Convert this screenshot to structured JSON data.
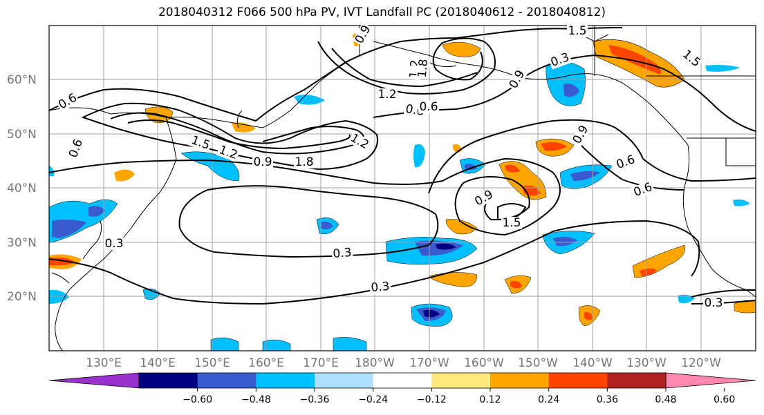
{
  "title": "2018040312 F066 500 hPa PV, IVT Landfall PC (2018040612 - 2018040812)",
  "map": {
    "lon_ticks": [
      "130°E",
      "140°E",
      "150°E",
      "160°E",
      "170°E",
      "180°W",
      "170°W",
      "160°W",
      "150°W",
      "140°W",
      "130°W",
      "120°W"
    ],
    "lat_ticks": [
      "60°N",
      "50°N",
      "40°N",
      "30°N",
      "20°N"
    ],
    "contour_labels": [
      "0.6",
      "0.6",
      "0.6",
      "0.3",
      "0.3",
      "0.3",
      "0.3",
      "0.9",
      "0.9",
      "0.9",
      "1.2",
      "1.2",
      "1.5",
      "1.5",
      "1.8",
      "1.8",
      "0.6",
      "0.6",
      "0.6",
      "1.5",
      "0.9",
      "0.3",
      "1.2",
      "1.2",
      "0.9",
      "1.5"
    ]
  },
  "colorbar": {
    "ticks": [
      "−0.60",
      "−0.48",
      "−0.36",
      "−0.24",
      "−0.12",
      "0.12",
      "0.24",
      "0.36",
      "0.48",
      "0.60"
    ],
    "colors": [
      "#9932cc",
      "#000080",
      "#3a5bcf",
      "#00bfff",
      "#b0e0ff",
      "#ffffff",
      "#ffe97f",
      "#ffa500",
      "#ff4500",
      "#b22222",
      "#ff88b0"
    ]
  }
}
